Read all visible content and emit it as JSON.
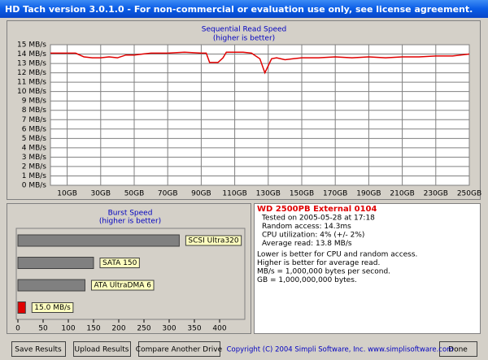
{
  "window": {
    "title": "HD Tach version 3.0.1.0  - For non-commercial or evaluation use only, see license agreement.",
    "buttons": [
      "Save Results",
      "Upload Results",
      "Compare Another Drive",
      "Done"
    ],
    "copyright": "Copyright (C) 2004 Simpli Software, Inc. www.simplisoftware.com"
  },
  "info": {
    "drive": "WD 2500PB External 0104",
    "lines": [
      "Tested on 2005-05-28 at 17:18",
      "Random access: 14.3ms",
      "CPU utilization: 4% (+/- 2%)",
      "Average read: 13.8 MB/s"
    ],
    "notes": [
      "Lower is better for CPU and random access.",
      "Higher is better for average read.",
      "MB/s = 1,000,000 bytes per second.",
      "GB = 1,000,000,000 bytes."
    ]
  },
  "chart_data": [
    {
      "type": "line",
      "title": "Sequential Read Speed",
      "subtitle": "(higher is better)",
      "x": [
        0,
        10,
        15,
        20,
        25,
        30,
        35,
        40,
        45,
        50,
        55,
        60,
        70,
        80,
        90,
        93,
        95,
        100,
        103,
        105,
        110,
        115,
        120,
        125,
        128,
        132,
        135,
        140,
        145,
        150,
        160,
        170,
        180,
        190,
        200,
        210,
        220,
        230,
        240,
        250
      ],
      "series": [
        {
          "color": "#e00000",
          "values": [
            14.1,
            14.1,
            14.1,
            13.7,
            13.6,
            13.6,
            13.7,
            13.6,
            13.9,
            13.9,
            14.0,
            14.1,
            14.1,
            14.2,
            14.1,
            14.1,
            13.1,
            13.1,
            13.6,
            14.2,
            14.2,
            14.2,
            14.1,
            13.5,
            12.0,
            13.5,
            13.6,
            13.4,
            13.5,
            13.6,
            13.6,
            13.7,
            13.6,
            13.7,
            13.6,
            13.7,
            13.7,
            13.8,
            13.8,
            14.0
          ]
        }
      ],
      "xlim": [
        0,
        250
      ],
      "ylim": [
        0,
        15
      ],
      "xticks": [
        {
          "value": 10,
          "label": "10GB"
        },
        {
          "value": 30,
          "label": "30GB"
        },
        {
          "value": 50,
          "label": "50GB"
        },
        {
          "value": 70,
          "label": "70GB"
        },
        {
          "value": 90,
          "label": "90GB"
        },
        {
          "value": 110,
          "label": "110GB"
        },
        {
          "value": 130,
          "label": "130GB"
        },
        {
          "value": 150,
          "label": "150GB"
        },
        {
          "value": 170,
          "label": "170GB"
        },
        {
          "value": 190,
          "label": "190GB"
        },
        {
          "value": 210,
          "label": "210GB"
        },
        {
          "value": 230,
          "label": "230GB"
        },
        {
          "value": 250,
          "label": "250GB"
        }
      ],
      "yticks": [
        {
          "value": 0,
          "label": "0 MB/s"
        },
        {
          "value": 1,
          "label": "1 MB/s"
        },
        {
          "value": 2,
          "label": "2 MB/s"
        },
        {
          "value": 3,
          "label": "3 MB/s"
        },
        {
          "value": 4,
          "label": "4 MB/s"
        },
        {
          "value": 5,
          "label": "5 MB/s"
        },
        {
          "value": 6,
          "label": "6 MB/s"
        },
        {
          "value": 7,
          "label": "7 MB/s"
        },
        {
          "value": 8,
          "label": "8 MB/s"
        },
        {
          "value": 9,
          "label": "9 MB/s"
        },
        {
          "value": 10,
          "label": "10 MB/s"
        },
        {
          "value": 11,
          "label": "11 MB/s"
        },
        {
          "value": 12,
          "label": "12 MB/s"
        },
        {
          "value": 13,
          "label": "13 MB/s"
        },
        {
          "value": 14,
          "label": "14 MB/s"
        },
        {
          "value": 15,
          "label": "15 MB/s"
        }
      ],
      "grid": true
    },
    {
      "type": "hbar",
      "title": "Burst Speed",
      "subtitle": "(higher is better)",
      "categories": [
        "SCSI Ultra320",
        "SATA 150",
        "ATA UltraDMA 6",
        null
      ],
      "values": [
        320,
        150,
        133,
        15
      ],
      "value_labels": [
        null,
        null,
        null,
        "15.0 MB/s"
      ],
      "colors": [
        "#808080",
        "#808080",
        "#808080",
        "#e00000"
      ],
      "xlim": [
        0,
        450
      ],
      "xticks": [
        0,
        50,
        100,
        150,
        200,
        250,
        300,
        350,
        400
      ]
    }
  ]
}
